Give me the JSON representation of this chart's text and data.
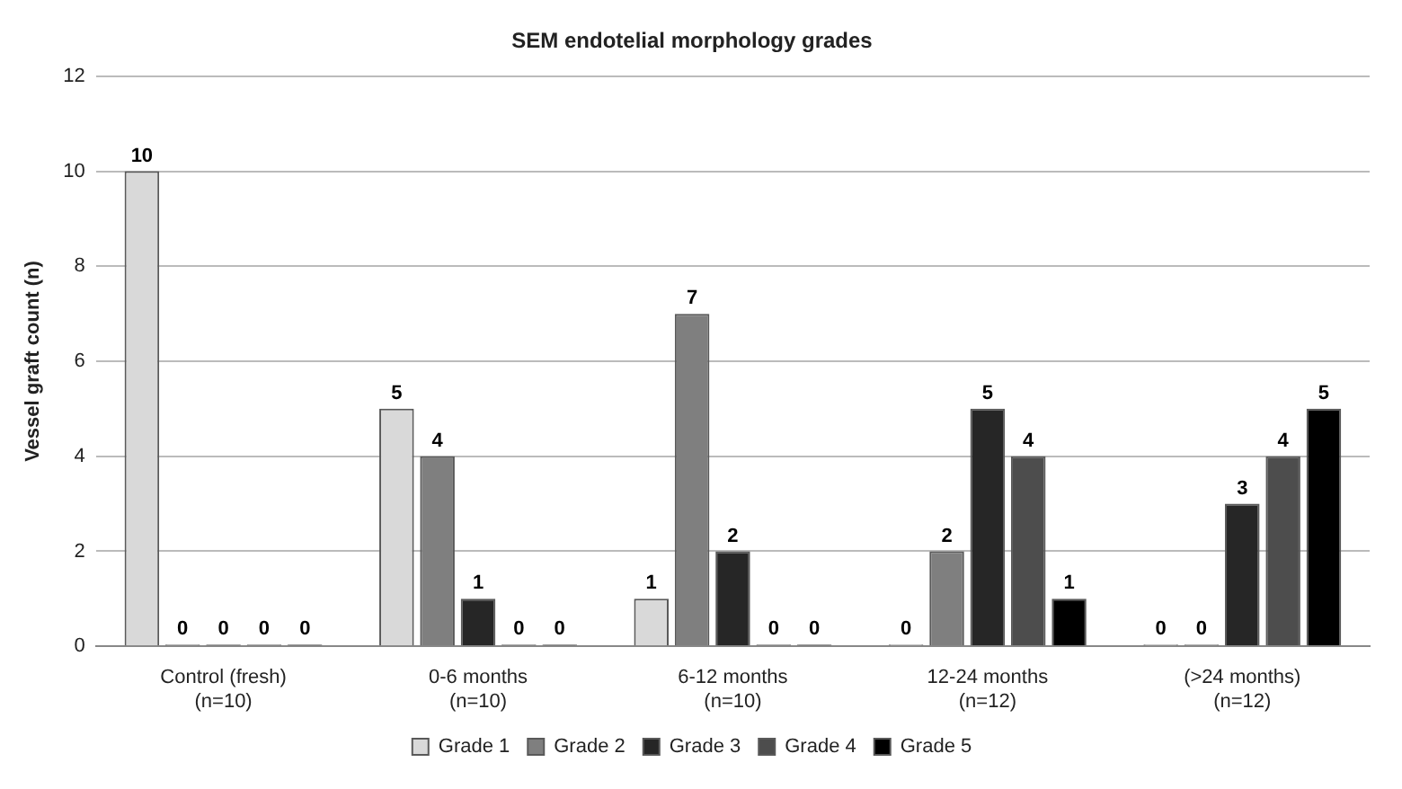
{
  "chart_data": {
    "type": "bar",
    "title": "SEM endotelial morphology grades",
    "ylabel": "Vessel graft count (n)",
    "categories": [
      "Control (fresh)\n(n=10)",
      "0-6 months\n(n=10)",
      "6-12 months\n(n=10)",
      "12-24 months\n(n=12)",
      "(>24 months)\n(n=12)"
    ],
    "series": [
      {
        "name": "Grade 1",
        "color": "#d9d9d9",
        "values": [
          10,
          5,
          1,
          0,
          0
        ]
      },
      {
        "name": "Grade 2",
        "color": "#7f7f7f",
        "values": [
          0,
          4,
          7,
          2,
          0
        ]
      },
      {
        "name": "Grade 3",
        "color": "#262626",
        "values": [
          0,
          1,
          2,
          5,
          3
        ]
      },
      {
        "name": "Grade 4",
        "color": "#4d4d4d",
        "values": [
          0,
          0,
          0,
          4,
          4
        ]
      },
      {
        "name": "Grade 5",
        "color": "#000000",
        "values": [
          0,
          0,
          0,
          1,
          5
        ]
      }
    ],
    "ylim": [
      0,
      12
    ],
    "yticks": [
      0,
      2,
      4,
      6,
      8,
      10,
      12
    ],
    "grid": "y",
    "legend": "bottom",
    "data_labels": true
  }
}
